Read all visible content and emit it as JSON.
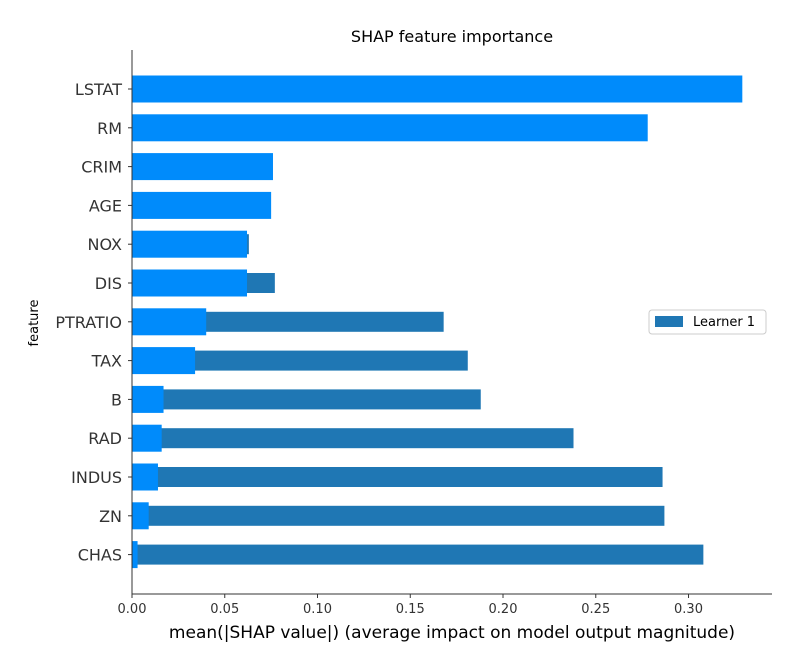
{
  "chart_data": {
    "type": "bar",
    "orientation": "horizontal",
    "title": "SHAP feature importance",
    "xlabel": "mean(|SHAP value|) (average impact on model output magnitude)",
    "ylabel": "feature",
    "xlim": [
      0,
      0.345
    ],
    "x_ticks": [
      "0.00",
      "0.05",
      "0.10",
      "0.15",
      "0.20",
      "0.25",
      "0.30"
    ],
    "x_tick_values": [
      0,
      0.05,
      0.1,
      0.15,
      0.2,
      0.25,
      0.3
    ],
    "categories": [
      "LSTAT",
      "RM",
      "CRIM",
      "AGE",
      "NOX",
      "DIS",
      "PTRATIO",
      "TAX",
      "B",
      "RAD",
      "INDUS",
      "ZN",
      "CHAS"
    ],
    "legend_position": "center-right",
    "series": [
      {
        "name": "Learner 1",
        "color": "#1f77b4",
        "values": [
          0,
          0,
          0,
          0,
          0.063,
          0.077,
          0.168,
          0.181,
          0.188,
          0.238,
          0.286,
          0.287,
          0.308
        ]
      },
      {
        "color": "#008bfb",
        "values": [
          0.329,
          0.278,
          0.076,
          0.075,
          0.062,
          0.062,
          0.04,
          0.034,
          0.017,
          0.016,
          0.014,
          0.009,
          0.003
        ]
      }
    ]
  }
}
